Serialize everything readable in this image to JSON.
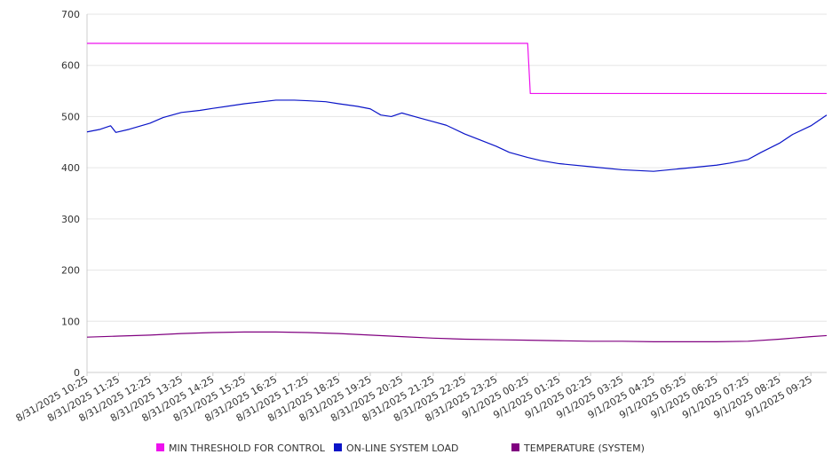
{
  "chart_data": {
    "type": "line",
    "title": "",
    "xlabel": "",
    "ylabel": "",
    "ylim": [
      0,
      700
    ],
    "y_ticks": [
      "0",
      "100",
      "200",
      "300",
      "400",
      "500",
      "600",
      "700"
    ],
    "grid": "horizontal",
    "legend_position": "bottom",
    "x_tick_labels": [
      "8/31/2025 10:25",
      "8/31/2025 11:25",
      "8/31/2025 12:25",
      "8/31/2025 13:25",
      "8/31/2025 14:25",
      "8/31/2025 15:25",
      "8/31/2025 16:25",
      "8/31/2025 17:25",
      "8/31/2025 18:25",
      "8/31/2025 19:25",
      "8/31/2025 20:25",
      "8/31/2025 21:25",
      "8/31/2025 22:25",
      "8/31/2025 23:25",
      "9/1/2025 00:25",
      "9/1/2025 01:25",
      "9/1/2025 02:25",
      "9/1/2025 03:25",
      "9/1/2025 04:25",
      "9/1/2025 05:25",
      "9/1/2025 06:25",
      "9/1/2025 07:25",
      "9/1/2025 08:25",
      "9/1/2025 09:25"
    ],
    "series": [
      {
        "name": "MIN THRESHOLD FOR CONTROL",
        "color": "#ee11ee",
        "points": [
          [
            "8/31/2025 10:25",
            643
          ],
          [
            "9/1/2025 00:25",
            643
          ],
          [
            "9/1/2025 00:30",
            545
          ],
          [
            "9/1/2025 09:55",
            545
          ]
        ]
      },
      {
        "name": "ON-LINE SYSTEM LOAD",
        "color": "#0a14c8",
        "points": [
          [
            "8/31/2025 10:25",
            470
          ],
          [
            "8/31/2025 10:50",
            475
          ],
          [
            "8/31/2025 11:10",
            482
          ],
          [
            "8/31/2025 11:20",
            469
          ],
          [
            "8/31/2025 11:45",
            475
          ],
          [
            "8/31/2025 12:25",
            487
          ],
          [
            "8/31/2025 12:50",
            498
          ],
          [
            "8/31/2025 13:25",
            508
          ],
          [
            "8/31/2025 14:00",
            512
          ],
          [
            "8/31/2025 14:25",
            516
          ],
          [
            "8/31/2025 15:25",
            525
          ],
          [
            "8/31/2025 16:25",
            532
          ],
          [
            "8/31/2025 17:00",
            532
          ],
          [
            "8/31/2025 17:25",
            531
          ],
          [
            "8/31/2025 18:00",
            529
          ],
          [
            "8/31/2025 18:25",
            525
          ],
          [
            "8/31/2025 19:00",
            520
          ],
          [
            "8/31/2025 19:25",
            515
          ],
          [
            "8/31/2025 19:45",
            503
          ],
          [
            "8/31/2025 20:05",
            500
          ],
          [
            "8/31/2025 20:25",
            507
          ],
          [
            "8/31/2025 21:00",
            497
          ],
          [
            "8/31/2025 21:25",
            490
          ],
          [
            "8/31/2025 21:50",
            483
          ],
          [
            "8/31/2025 22:25",
            466
          ],
          [
            "8/31/2025 22:50",
            456
          ],
          [
            "8/31/2025 23:25",
            442
          ],
          [
            "8/31/2025 23:50",
            430
          ],
          [
            "9/1/2025 00:25",
            420
          ],
          [
            "9/1/2025 00:50",
            414
          ],
          [
            "9/1/2025 01:25",
            408
          ],
          [
            "9/1/2025 02:25",
            402
          ],
          [
            "9/1/2025 03:25",
            396
          ],
          [
            "9/1/2025 04:25",
            393
          ],
          [
            "9/1/2025 05:25",
            399
          ],
          [
            "9/1/2025 06:25",
            405
          ],
          [
            "9/1/2025 06:50",
            409
          ],
          [
            "9/1/2025 07:25",
            416
          ],
          [
            "9/1/2025 07:50",
            430
          ],
          [
            "9/1/2025 08:25",
            448
          ],
          [
            "9/1/2025 08:50",
            465
          ],
          [
            "9/1/2025 09:25",
            482
          ],
          [
            "9/1/2025 09:55",
            503
          ]
        ]
      },
      {
        "name": "TEMPERATURE (SYSTEM)",
        "color": "#800080",
        "points": [
          [
            "8/31/2025 10:25",
            69
          ],
          [
            "8/31/2025 11:25",
            71
          ],
          [
            "8/31/2025 12:25",
            73
          ],
          [
            "8/31/2025 13:25",
            76
          ],
          [
            "8/31/2025 14:25",
            78
          ],
          [
            "8/31/2025 15:25",
            79
          ],
          [
            "8/31/2025 16:25",
            79
          ],
          [
            "8/31/2025 17:25",
            78
          ],
          [
            "8/31/2025 18:25",
            76
          ],
          [
            "8/31/2025 19:25",
            73
          ],
          [
            "8/31/2025 20:25",
            70
          ],
          [
            "8/31/2025 21:25",
            67
          ],
          [
            "8/31/2025 22:25",
            65
          ],
          [
            "8/31/2025 23:25",
            64
          ],
          [
            "9/1/2025 00:25",
            63
          ],
          [
            "9/1/2025 01:25",
            62
          ],
          [
            "9/1/2025 02:25",
            61
          ],
          [
            "9/1/2025 03:25",
            61
          ],
          [
            "9/1/2025 04:25",
            60
          ],
          [
            "9/1/2025 05:25",
            60
          ],
          [
            "9/1/2025 06:25",
            60
          ],
          [
            "9/1/2025 07:25",
            61
          ],
          [
            "9/1/2025 08:25",
            65
          ],
          [
            "9/1/2025 09:25",
            70
          ],
          [
            "9/1/2025 09:55",
            72
          ]
        ]
      }
    ]
  }
}
